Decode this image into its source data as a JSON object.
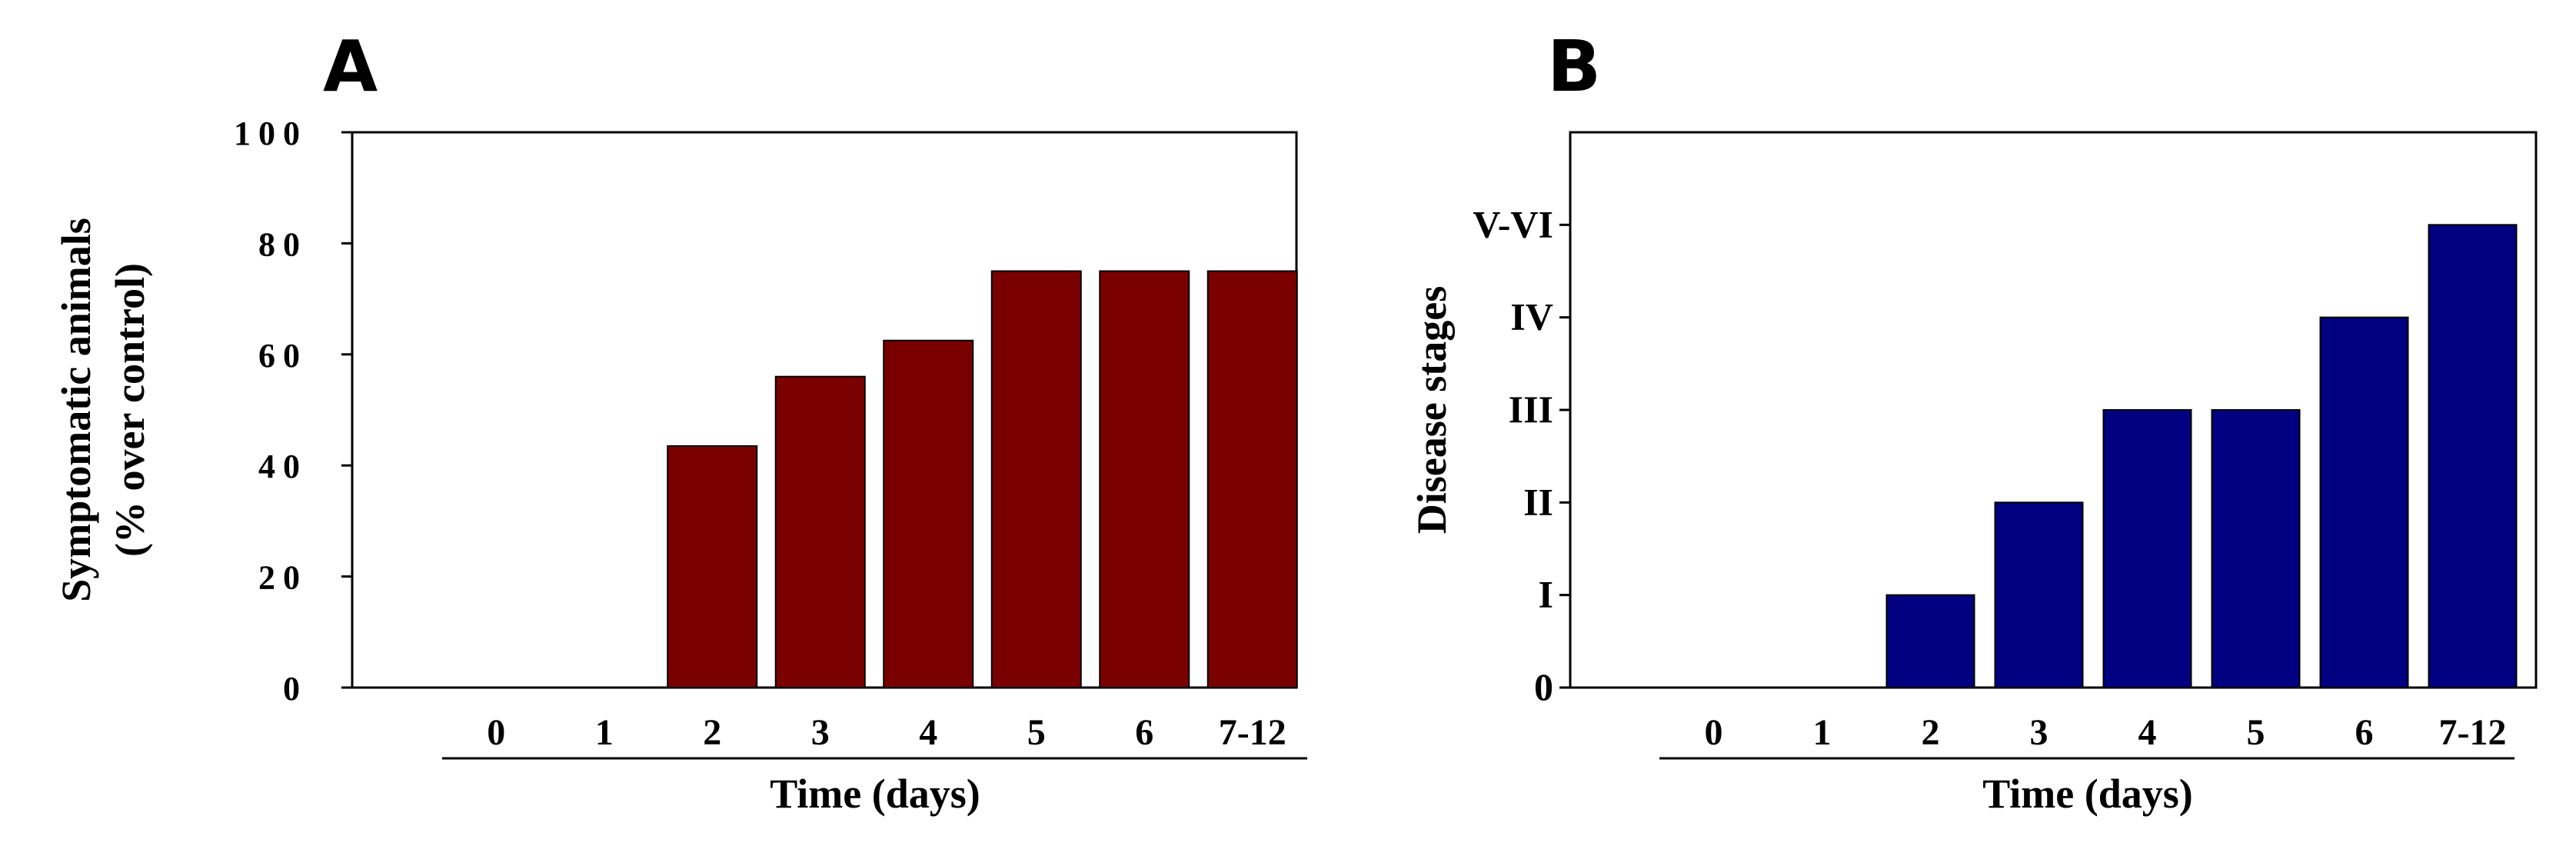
{
  "chart_data": [
    {
      "type": "bar",
      "panel": "A",
      "title": "",
      "xlabel": "Time (days)",
      "ylabel_line1": "Symptomatic animals",
      "ylabel_line2": "(% over control)",
      "categories": [
        "0",
        "1",
        "2",
        "3",
        "4",
        "5",
        "6",
        "7-12"
      ],
      "values": [
        0,
        0,
        43.5,
        56,
        62.5,
        75,
        75,
        75
      ],
      "ylim": [
        0,
        100
      ],
      "yticks": [
        0,
        20,
        40,
        60,
        80,
        100
      ],
      "ytick_labels": [
        "0",
        "20",
        "40",
        "60",
        "80",
        "100"
      ],
      "bar_color": "#7a0000",
      "grid": false
    },
    {
      "type": "bar",
      "panel": "B",
      "title": "",
      "xlabel": "Time (days)",
      "ylabel": "Disease stages",
      "categories": [
        "0",
        "1",
        "2",
        "3",
        "4",
        "5",
        "6",
        "7-12"
      ],
      "values": [
        0,
        0,
        1,
        2,
        3,
        3,
        4,
        5
      ],
      "ylim": [
        0,
        6
      ],
      "yticks": [
        0,
        1,
        2,
        3,
        4,
        5
      ],
      "ytick_labels": [
        "0",
        "I",
        "II",
        "III",
        "IV",
        "V-VI"
      ],
      "bar_color": "#000080",
      "grid": false
    }
  ]
}
